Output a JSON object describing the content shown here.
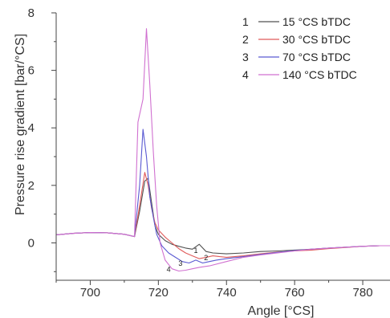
{
  "chart_data": {
    "type": "line",
    "xlabel": "Angle [°CS]",
    "ylabel": "Pressure rise gradient [bar/°CS]",
    "xlim": [
      690,
      788
    ],
    "ylim": [
      -1.3,
      8
    ],
    "x_ticks": [
      700,
      720,
      740,
      760,
      780
    ],
    "y_ticks": [
      0,
      2,
      4,
      6,
      8
    ],
    "x_tick_labels": [
      "700",
      "720",
      "740",
      "760",
      "780"
    ],
    "y_tick_labels": [
      "0",
      "2",
      "4",
      "6",
      "8"
    ],
    "legend_placement": "top-right",
    "grid": false,
    "series": [
      {
        "id": "1",
        "name": "15 °CS bTDC",
        "color": "#505050",
        "annotation": "1",
        "annotation_at": [
          731,
          -0.35
        ],
        "x": [
          690,
          695,
          700,
          705,
          710,
          713,
          714.5,
          716,
          717,
          718,
          719,
          720,
          722,
          724,
          726,
          728,
          730,
          732,
          734,
          736,
          740,
          745,
          750,
          755,
          760,
          765,
          770,
          775,
          780,
          785,
          788
        ],
        "y": [
          0.28,
          0.33,
          0.36,
          0.35,
          0.3,
          0.22,
          1.1,
          2.15,
          2.25,
          1.4,
          0.6,
          0.3,
          0.08,
          -0.05,
          -0.12,
          -0.18,
          -0.22,
          -0.05,
          -0.3,
          -0.35,
          -0.38,
          -0.35,
          -0.3,
          -0.28,
          -0.25,
          -0.22,
          -0.18,
          -0.15,
          -0.12,
          -0.1,
          -0.1
        ]
      },
      {
        "id": "2",
        "name": "30 °CS bTDC",
        "color": "#e05a5a",
        "annotation": "2",
        "annotation_at": [
          734,
          -0.6
        ],
        "x": [
          690,
          695,
          700,
          705,
          710,
          713,
          714.5,
          716,
          717,
          718,
          719,
          720,
          722,
          724,
          726,
          728,
          730,
          732,
          734,
          736,
          738,
          740,
          745,
          750,
          755,
          760,
          765,
          770,
          775,
          780,
          785,
          788
        ],
        "y": [
          0.28,
          0.33,
          0.36,
          0.35,
          0.3,
          0.22,
          1.3,
          2.45,
          2.0,
          1.2,
          0.7,
          0.45,
          0.2,
          0.0,
          -0.2,
          -0.35,
          -0.45,
          -0.55,
          -0.5,
          -0.45,
          -0.48,
          -0.5,
          -0.45,
          -0.38,
          -0.32,
          -0.28,
          -0.25,
          -0.2,
          -0.16,
          -0.12,
          -0.1,
          -0.1
        ]
      },
      {
        "id": "3",
        "name": "70 °CS bTDC",
        "color": "#5a5ad2",
        "annotation": "3",
        "annotation_at": [
          726.5,
          -0.8
        ],
        "x": [
          690,
          695,
          700,
          705,
          710,
          713,
          714.5,
          715.5,
          716.5,
          717.5,
          718.5,
          719.5,
          721,
          723,
          725,
          727,
          729,
          731,
          733,
          735,
          737,
          740,
          745,
          750,
          755,
          760,
          765,
          770,
          775,
          780,
          785,
          788
        ],
        "y": [
          0.28,
          0.33,
          0.36,
          0.35,
          0.3,
          0.22,
          2.0,
          3.95,
          3.0,
          1.6,
          0.9,
          0.3,
          -0.1,
          -0.35,
          -0.5,
          -0.65,
          -0.7,
          -0.6,
          -0.7,
          -0.65,
          -0.6,
          -0.55,
          -0.48,
          -0.4,
          -0.33,
          -0.27,
          -0.22,
          -0.18,
          -0.15,
          -0.12,
          -0.1,
          -0.1
        ]
      },
      {
        "id": "4",
        "name": "140 °CS bTDC",
        "color": "#d070d0",
        "annotation": "4",
        "annotation_at": [
          723,
          -1.0
        ],
        "x": [
          690,
          695,
          700,
          705,
          710,
          713,
          714,
          715.5,
          716.5,
          717.5,
          718.5,
          719.5,
          720.5,
          722,
          724,
          726,
          728,
          730,
          732,
          735,
          740,
          745,
          750,
          755,
          760,
          765,
          770,
          775,
          780,
          785,
          788
        ],
        "y": [
          0.28,
          0.33,
          0.36,
          0.35,
          0.3,
          0.22,
          4.2,
          5.0,
          7.45,
          5.5,
          3.2,
          1.3,
          0.0,
          -0.6,
          -0.9,
          -0.98,
          -0.95,
          -0.9,
          -0.85,
          -0.8,
          -0.65,
          -0.5,
          -0.42,
          -0.35,
          -0.28,
          -0.22,
          -0.18,
          -0.15,
          -0.12,
          -0.1,
          -0.1
        ]
      }
    ]
  }
}
